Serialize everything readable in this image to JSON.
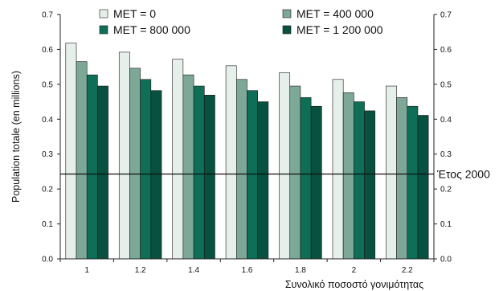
{
  "chart_data": {
    "type": "bar",
    "title": "",
    "xlabel": "Συνολικό ποσοστό γονιμότητας",
    "ylabel": "Population totale (en millions)",
    "categories": [
      "1",
      "1.2",
      "1.4",
      "1.6",
      "1.8",
      "2",
      "2.2"
    ],
    "ylim": [
      0,
      0.7
    ],
    "yticks": [
      "0.0",
      "0.1",
      "0.2",
      "0.3",
      "0.4",
      "0.5",
      "0.6",
      "0.7"
    ],
    "right_yticks": [
      "0.0",
      "0.1",
      "0.2",
      "0.3",
      "0.4",
      "0.5",
      "0.6",
      "0.7"
    ],
    "series": [
      {
        "name": "MET = 0",
        "color": "#e6efe9",
        "values": [
          0.618,
          0.592,
          0.572,
          0.553,
          0.533,
          0.514,
          0.495
        ]
      },
      {
        "name": "MET = 400 000",
        "color": "#7da898",
        "values": [
          0.565,
          0.546,
          0.527,
          0.514,
          0.495,
          0.476,
          0.462
        ]
      },
      {
        "name": "MET = 800 000",
        "color": "#0e6e56",
        "values": [
          0.527,
          0.514,
          0.495,
          0.482,
          0.462,
          0.45,
          0.437
        ]
      },
      {
        "name": "MET = 1 200 000",
        "color": "#08503f",
        "values": [
          0.495,
          0.482,
          0.469,
          0.45,
          0.437,
          0.424,
          0.411
        ]
      }
    ],
    "reference_line": {
      "value": 0.243,
      "label": "Έτος 2000"
    },
    "legend_position": "top",
    "grid": false
  }
}
